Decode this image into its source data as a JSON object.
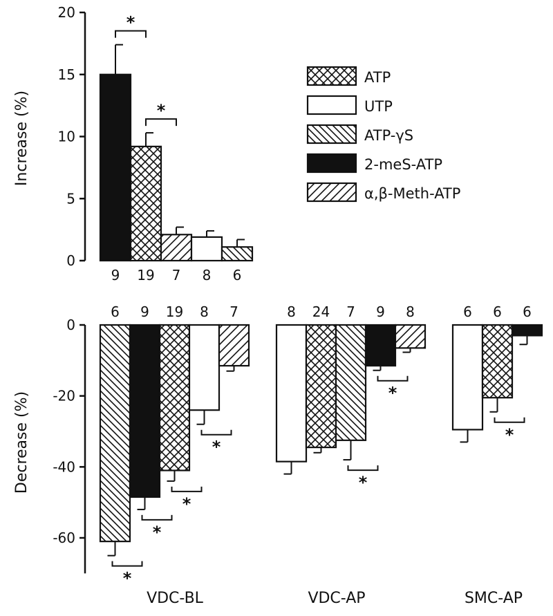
{
  "colors": {
    "ink": "#111111",
    "open": "#ffffff",
    "solid": "#111111"
  },
  "chart_data": [
    {
      "type": "bar",
      "panel": "top",
      "ylabel": "Increase (%)",
      "ylim": [
        0,
        20
      ],
      "yticks": [
        0,
        5,
        10,
        15,
        20
      ],
      "series_order": [
        "2-meS-ATP",
        "ATP",
        "α,β-Meth-ATP",
        "UTP",
        "ATP-γS"
      ],
      "values": [
        15.0,
        9.2,
        2.1,
        1.9,
        1.1
      ],
      "errors": [
        2.4,
        1.1,
        0.6,
        0.5,
        0.6
      ],
      "n": [
        "9",
        "19",
        "7",
        "8",
        "6"
      ],
      "significance": [
        {
          "between": [
            0,
            1
          ],
          "label": "*"
        },
        {
          "between": [
            1,
            2
          ],
          "label": "*"
        }
      ]
    },
    {
      "type": "bar",
      "panel": "bottom",
      "ylabel": "Decrease (%)",
      "ylim": [
        -70,
        0
      ],
      "yticks": [
        0,
        -20,
        -40,
        -60
      ],
      "groups": [
        {
          "label": "VDC-BL",
          "series_order": [
            "ATP-γS",
            "2-meS-ATP",
            "ATP",
            "UTP",
            "α,β-Meth-ATP"
          ],
          "values": [
            -61,
            -48.5,
            -41,
            -24,
            -11.5
          ],
          "errors": [
            4,
            3.5,
            3,
            4,
            1.5
          ],
          "n": [
            "6",
            "9",
            "19",
            "8",
            "7"
          ],
          "significance": [
            {
              "between": [
                0,
                1
              ],
              "label": "*"
            },
            {
              "between": [
                1,
                2
              ],
              "label": "*"
            },
            {
              "between": [
                2,
                3
              ],
              "label": "*"
            },
            {
              "between": [
                3,
                4
              ],
              "label": "*"
            }
          ]
        },
        {
          "label": "VDC-AP",
          "series_order": [
            "UTP",
            "ATP",
            "ATP-γS",
            "2-meS-ATP",
            "α,β-Meth-ATP"
          ],
          "values": [
            -38.5,
            -34.5,
            -32.5,
            -11.5,
            -6.5
          ],
          "errors": [
            3.5,
            1.5,
            5.5,
            1.3,
            1.2
          ],
          "n": [
            "8",
            "24",
            "7",
            "9",
            "8"
          ],
          "significance": [
            {
              "between": [
                2,
                3
              ],
              "label": "*"
            },
            {
              "between": [
                3,
                4
              ],
              "label": "*"
            }
          ]
        },
        {
          "label": "SMC-AP",
          "series_order": [
            "UTP",
            "ATP",
            "2-meS-ATP"
          ],
          "values": [
            -29.5,
            -20.5,
            -3
          ],
          "errors": [
            3.5,
            4,
            2.5
          ],
          "n": [
            "6",
            "6",
            "6"
          ],
          "significance": [
            {
              "between": [
                1,
                2
              ],
              "label": "*"
            }
          ]
        }
      ]
    }
  ],
  "legend": [
    {
      "label": "ATP",
      "pattern": "crosshatch"
    },
    {
      "label": "UTP",
      "pattern": "open"
    },
    {
      "label": "ATP-γS",
      "pattern": "back-diagonal"
    },
    {
      "label": "2-meS-ATP",
      "pattern": "solid"
    },
    {
      "label": "α,β-Meth-ATP",
      "pattern": "forward-diagonal"
    }
  ]
}
